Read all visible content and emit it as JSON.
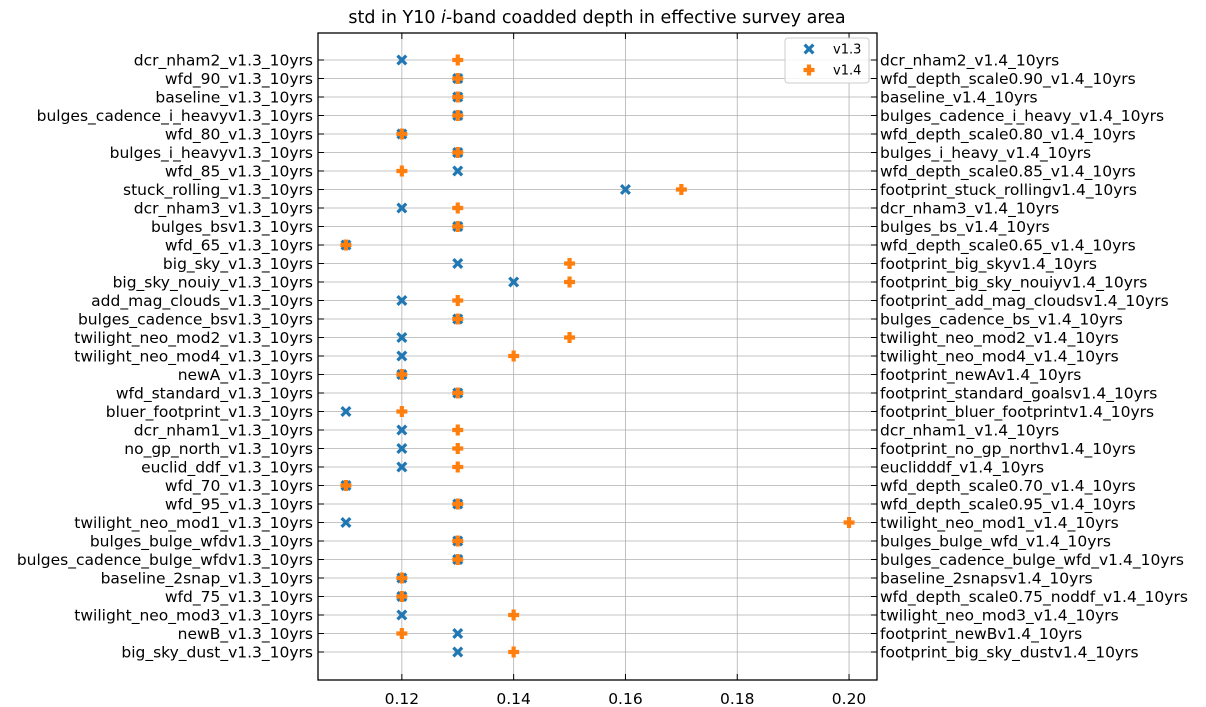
{
  "chart_data": {
    "type": "scatter",
    "title_prefix": "std in Y10 ",
    "title_italic": "i",
    "title_suffix": "-band coadded depth in effective survey area",
    "xlim": [
      0.105,
      0.205
    ],
    "xticks": [
      0.12,
      0.14,
      0.16,
      0.18,
      0.2
    ],
    "xtick_labels": [
      "0.12",
      "0.14",
      "0.16",
      "0.18",
      "0.20"
    ],
    "grid": true,
    "legend_position": "top-right",
    "left_labels": [
      "dcr_nham2_v1.3_10yrs",
      "wfd_90_v1.3_10yrs",
      "baseline_v1.3_10yrs",
      "bulges_cadence_i_heavyv1.3_10yrs",
      "wfd_80_v1.3_10yrs",
      "bulges_i_heavyv1.3_10yrs",
      "wfd_85_v1.3_10yrs",
      "stuck_rolling_v1.3_10yrs",
      "dcr_nham3_v1.3_10yrs",
      "bulges_bsv1.3_10yrs",
      "wfd_65_v1.3_10yrs",
      "big_sky_v1.3_10yrs",
      "big_sky_nouiy_v1.3_10yrs",
      "add_mag_clouds_v1.3_10yrs",
      "bulges_cadence_bsv1.3_10yrs",
      "twilight_neo_mod2_v1.3_10yrs",
      "twilight_neo_mod4_v1.3_10yrs",
      "newA_v1.3_10yrs",
      "wfd_standard_v1.3_10yrs",
      "bluer_footprint_v1.3_10yrs",
      "dcr_nham1_v1.3_10yrs",
      "no_gp_north_v1.3_10yrs",
      "euclid_ddf_v1.3_10yrs",
      "wfd_70_v1.3_10yrs",
      "wfd_95_v1.3_10yrs",
      "twilight_neo_mod1_v1.3_10yrs",
      "bulges_bulge_wfdv1.3_10yrs",
      "bulges_cadence_bulge_wfdv1.3_10yrs",
      "baseline_2snap_v1.3_10yrs",
      "wfd_75_v1.3_10yrs",
      "twilight_neo_mod3_v1.3_10yrs",
      "newB_v1.3_10yrs",
      "big_sky_dust_v1.3_10yrs"
    ],
    "right_labels": [
      "dcr_nham2_v1.4_10yrs",
      "wfd_depth_scale0.90_v1.4_10yrs",
      "baseline_v1.4_10yrs",
      "bulges_cadence_i_heavy_v1.4_10yrs",
      "wfd_depth_scale0.80_v1.4_10yrs",
      "bulges_i_heavy_v1.4_10yrs",
      "wfd_depth_scale0.85_v1.4_10yrs",
      "footprint_stuck_rollingv1.4_10yrs",
      "dcr_nham3_v1.4_10yrs",
      "bulges_bs_v1.4_10yrs",
      "wfd_depth_scale0.65_v1.4_10yrs",
      "footprint_big_skyv1.4_10yrs",
      "footprint_big_sky_nouiyv1.4_10yrs",
      "footprint_add_mag_cloudsv1.4_10yrs",
      "bulges_cadence_bs_v1.4_10yrs",
      "twilight_neo_mod2_v1.4_10yrs",
      "twilight_neo_mod4_v1.4_10yrs",
      "footprint_newAv1.4_10yrs",
      "footprint_standard_goalsv1.4_10yrs",
      "footprint_bluer_footprintv1.4_10yrs",
      "dcr_nham1_v1.4_10yrs",
      "footprint_no_gp_northv1.4_10yrs",
      "euclidddf_v1.4_10yrs",
      "wfd_depth_scale0.70_v1.4_10yrs",
      "wfd_depth_scale0.95_v1.4_10yrs",
      "twilight_neo_mod1_v1.4_10yrs",
      "bulges_bulge_wfd_v1.4_10yrs",
      "bulges_cadence_bulge_wfd_v1.4_10yrs",
      "baseline_2snapsv1.4_10yrs",
      "wfd_depth_scale0.75_noddf_v1.4_10yrs",
      "twilight_neo_mod3_v1.4_10yrs",
      "footprint_newBv1.4_10yrs",
      "footprint_big_sky_dustv1.4_10yrs"
    ],
    "series": [
      {
        "name": "v1.3",
        "color": "#1f77b4",
        "marker": "X",
        "values": [
          0.12,
          0.13,
          0.13,
          0.13,
          0.12,
          0.13,
          0.13,
          0.16,
          0.12,
          0.13,
          0.11,
          0.13,
          0.14,
          0.12,
          0.13,
          0.12,
          0.12,
          0.12,
          0.13,
          0.11,
          0.12,
          0.12,
          0.12,
          0.11,
          0.13,
          0.11,
          0.13,
          0.13,
          0.12,
          0.12,
          0.12,
          0.13,
          0.13
        ]
      },
      {
        "name": "v1.4",
        "color": "#ff7f0e",
        "marker": "P",
        "values": [
          0.13,
          0.13,
          0.13,
          0.13,
          0.12,
          0.13,
          0.12,
          0.17,
          0.13,
          0.13,
          0.11,
          0.15,
          0.15,
          0.13,
          0.13,
          0.15,
          0.14,
          0.12,
          0.13,
          0.12,
          0.13,
          0.13,
          0.13,
          0.11,
          0.13,
          0.2,
          0.13,
          0.13,
          0.12,
          0.12,
          0.14,
          0.12,
          0.14
        ]
      }
    ]
  }
}
